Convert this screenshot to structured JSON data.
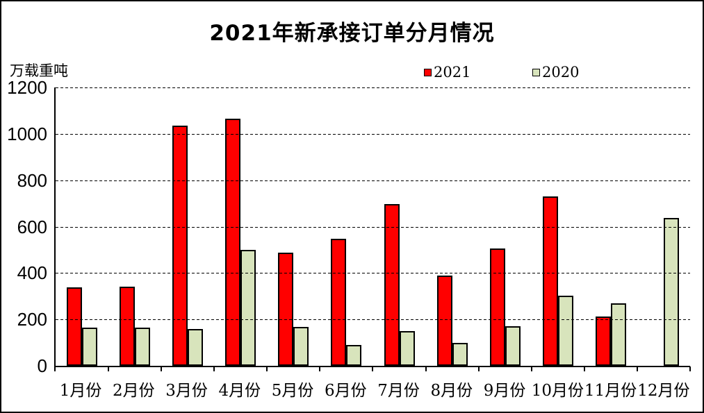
{
  "title": "2021年新承接订单分月情况",
  "unit_label": "万载重吨",
  "colors": {
    "series_2021": "#ff0000",
    "series_2020": "#d8e4bc",
    "axis": "#000000",
    "background": "#ffffff"
  },
  "chart_data": {
    "type": "bar",
    "title": "2021年新承接订单分月情况",
    "ylabel": "万载重吨",
    "xlabel": "",
    "ylim": [
      0,
      1200
    ],
    "ytick_interval": 200,
    "yticks": [
      0,
      200,
      400,
      600,
      800,
      1000,
      1200
    ],
    "grid": "horizontal-dashed",
    "legend_position": "top",
    "categories": [
      "1月份",
      "2月份",
      "3月份",
      "4月份",
      "5月份",
      "6月份",
      "7月份",
      "8月份",
      "9月份",
      "10月份",
      "11月份",
      "12月份"
    ],
    "series": [
      {
        "name": "2021",
        "color": "#ff0000",
        "values": [
          338,
          341,
          1035,
          1066,
          488,
          549,
          698,
          388,
          505,
          730,
          213,
          0
        ]
      },
      {
        "name": "2020",
        "color": "#d8e4bc",
        "values": [
          165,
          165,
          158,
          500,
          169,
          89,
          151,
          99,
          172,
          303,
          268,
          638
        ]
      }
    ]
  }
}
